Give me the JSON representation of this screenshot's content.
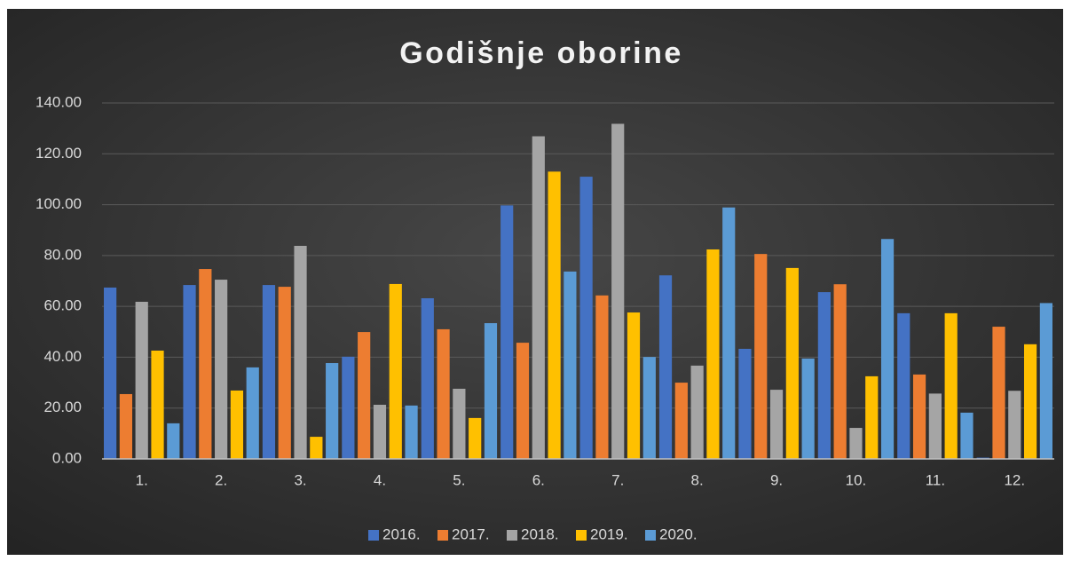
{
  "chart_data": {
    "type": "bar",
    "title": "Godišnje oborine",
    "categories": [
      "1.",
      "2.",
      "3.",
      "4.",
      "5.",
      "6.",
      "7.",
      "8.",
      "9.",
      "10.",
      "11.",
      "12."
    ],
    "series": [
      {
        "name": "2016.",
        "color": "#4472c4",
        "values": [
          67.4,
          68.4,
          68.4,
          40.2,
          63.2,
          99.7,
          111,
          72.2,
          43.3,
          65.6,
          57.3,
          0.5
        ]
      },
      {
        "name": "2017.",
        "color": "#ed7d31",
        "values": [
          25.5,
          74.7,
          67.7,
          49.9,
          51,
          45.7,
          64.3,
          30,
          80.6,
          68.7,
          33.2,
          52
        ]
      },
      {
        "name": "2018.",
        "color": "#a5a5a5",
        "values": [
          61.8,
          70.5,
          83.8,
          21.3,
          27.6,
          126.9,
          131.8,
          36.7,
          27.2,
          12.2,
          25.7,
          26.8
        ]
      },
      {
        "name": "2019.",
        "color": "#ffc000",
        "values": [
          42.6,
          26.9,
          8.7,
          68.8,
          16.1,
          113,
          57.6,
          82.4,
          75.1,
          32.5,
          57.3,
          45.1
        ]
      },
      {
        "name": "2020.",
        "color": "#5b9bd5",
        "values": [
          14,
          36,
          37.7,
          21,
          53.4,
          73.7,
          40.1,
          98.9,
          39.5,
          86.5,
          18.2,
          61.3
        ]
      }
    ],
    "ylim": [
      0,
      140
    ],
    "yticks": [
      {
        "value": 0,
        "label": "0.00"
      },
      {
        "value": 20,
        "label": "20.00"
      },
      {
        "value": 40,
        "label": "40.00"
      },
      {
        "value": 60,
        "label": "60.00"
      },
      {
        "value": 80,
        "label": "80.00"
      },
      {
        "value": 100,
        "label": "100.00"
      },
      {
        "value": 120,
        "label": "120.00"
      },
      {
        "value": 140,
        "label": "140.00"
      }
    ],
    "grid": true,
    "legend": "bottom"
  }
}
